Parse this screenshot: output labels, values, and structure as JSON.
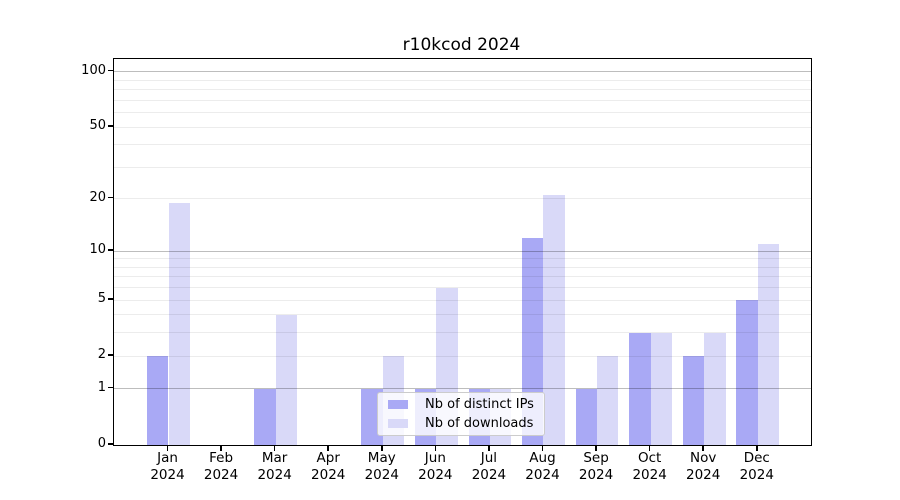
{
  "title": "r10kcod 2024",
  "chart_data": {
    "type": "bar",
    "title": "r10kcod 2024",
    "categories": [
      "Jan",
      "Feb",
      "Mar",
      "Apr",
      "May",
      "Jun",
      "Jul",
      "Aug",
      "Sep",
      "Oct",
      "Nov",
      "Dec"
    ],
    "x_tick_year_line": "2024",
    "series": [
      {
        "name": "Nb of distinct IPs",
        "color": "#a9a9f5",
        "values": [
          2,
          0,
          1,
          0,
          1,
          1,
          1,
          12,
          1,
          3,
          2,
          5
        ]
      },
      {
        "name": "Nb of downloads",
        "color": "#d9d9f8",
        "values": [
          19,
          0,
          4,
          0,
          2,
          6,
          1,
          21,
          2,
          3,
          3,
          11
        ]
      }
    ],
    "xlabel": "",
    "ylabel": "",
    "yscale": "log10(1+x)",
    "ylim": [
      0,
      116
    ],
    "y_tick_labels": [
      "100",
      "50",
      "20",
      "10",
      "5",
      "2",
      "1",
      "0"
    ],
    "y_tick_values": [
      100,
      50,
      20,
      10,
      5,
      2,
      1,
      0
    ],
    "y_major_grid_values": [
      1,
      10,
      100
    ],
    "y_minor_grid_values": [
      2,
      3,
      4,
      5,
      6,
      7,
      8,
      9,
      20,
      30,
      40,
      50,
      60,
      70,
      80,
      90
    ],
    "grid": true,
    "legend": {
      "position": "lower-center",
      "items": [
        "Nb of distinct IPs",
        "Nb of downloads"
      ]
    }
  },
  "colors": {
    "background": "#ffffff",
    "axis": "#000000",
    "series_distinct_ips": "#a9a9f5",
    "series_downloads": "#d9d9f8",
    "legend_border": "#cccccc"
  }
}
